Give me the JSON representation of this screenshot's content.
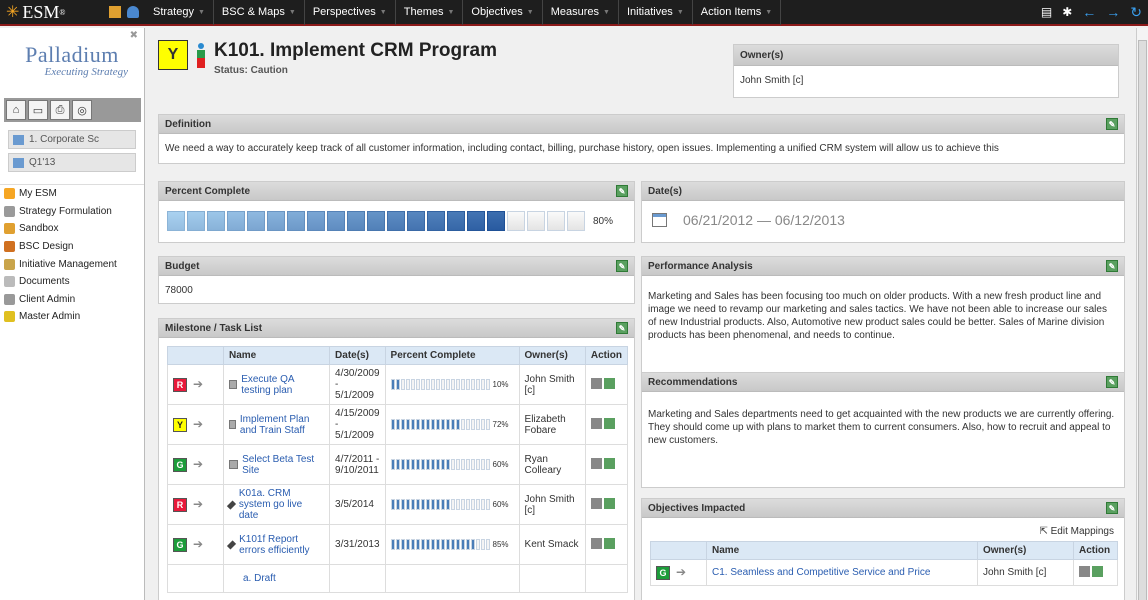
{
  "app": {
    "logo": "ESM",
    "logo_mark": "®"
  },
  "nav": [
    {
      "label": "Strategy"
    },
    {
      "label": "BSC & Maps"
    },
    {
      "label": "Perspectives"
    },
    {
      "label": "Themes"
    },
    {
      "label": "Objectives"
    },
    {
      "label": "Measures"
    },
    {
      "label": "Initiatives"
    },
    {
      "label": "Action Items"
    }
  ],
  "sidebar": {
    "brand_name": "Palladium",
    "brand_tagline": "Executing Strategy",
    "scorecard": "1. Corporate Sc",
    "period": "Q1'13",
    "menu": [
      {
        "label": "My ESM",
        "color": "#f6a623"
      },
      {
        "label": "Strategy Formulation",
        "color": "#9a9a9a"
      },
      {
        "label": "Sandbox",
        "color": "#e0a030"
      },
      {
        "label": "BSC Design",
        "color": "#d07020"
      },
      {
        "label": "Initiative Management",
        "color": "#c9a44a"
      },
      {
        "label": "Documents",
        "color": "#bbbbbb"
      },
      {
        "label": "Client Admin",
        "color": "#999999"
      },
      {
        "label": "Master Admin",
        "color": "#e0c020"
      }
    ]
  },
  "header": {
    "status_letter": "Y",
    "title": "K101. Implement CRM Program",
    "status": "Status: Caution"
  },
  "owner": {
    "title": "Owner(s)",
    "name": "John Smith [c]"
  },
  "definition": {
    "title": "Definition",
    "text": "We need a way to accurately keep track of all customer information, including contact, billing, purchase history, open issues. Implementing a unified CRM system will allow us to achieve this"
  },
  "percent_complete": {
    "title": "Percent Complete",
    "value": 80,
    "label": "80%"
  },
  "dates": {
    "title": "Date(s)",
    "range": "06/21/2012 — 06/12/2013"
  },
  "budget": {
    "title": "Budget",
    "value": "78000"
  },
  "performance": {
    "title": "Performance Analysis",
    "text": "Marketing and Sales has been focusing too much on older products.  With a new fresh product line and image we need to revamp our marketing and sales tactics.  We have not been able to increase our sales of new Industrial products.  Also, Automotive new product sales could be better.  Sales of Marine division products has been phenomenal, and needs to continue."
  },
  "recommendations": {
    "title": "Recommendations",
    "text": "Marketing and Sales departments need to get acquainted with the new products we are currently offering.  They should come up with plans to market them to current consumers. Also, how to recruit and appeal to new customers."
  },
  "milestones": {
    "title": "Milestone / Task List",
    "columns": [
      "Name",
      "Date(s)",
      "Percent Complete",
      "Owner(s)",
      "Action"
    ],
    "rows": [
      {
        "status": "R",
        "type": "task",
        "name": "Execute QA testing plan",
        "dates": "4/30/2009 - 5/1/2009",
        "pct": 10,
        "pct_label": "10%",
        "owner": "John Smith [c]"
      },
      {
        "status": "Y",
        "type": "task",
        "name": "Implement Plan and Train Staff",
        "dates": "4/15/2009 - 5/1/2009",
        "pct": 72,
        "pct_label": "72%",
        "owner": "Elizabeth Fobare"
      },
      {
        "status": "G",
        "type": "task",
        "name": "Select Beta Test Site",
        "dates": "4/7/2011 - 9/10/2011",
        "pct": 60,
        "pct_label": "60%",
        "owner": "Ryan Colleary"
      },
      {
        "status": "R",
        "type": "milestone",
        "name": "K01a. CRM system go live date",
        "dates": "3/5/2014",
        "pct": 60,
        "pct_label": "60%",
        "owner": "John Smith [c]"
      },
      {
        "status": "G",
        "type": "milestone",
        "name": "K101f Report errors efficiently",
        "dates": "3/31/2013",
        "pct": 85,
        "pct_label": "85%",
        "owner": "Kent Smack"
      },
      {
        "status": "",
        "type": "none",
        "name": "a. Draft",
        "dates": "",
        "pct": null,
        "pct_label": "",
        "owner": ""
      }
    ]
  },
  "objectives": {
    "title": "Objectives Impacted",
    "edit_label": "Edit Mappings",
    "columns": [
      "Name",
      "Owner(s)",
      "Action"
    ],
    "rows": [
      {
        "status": "G",
        "name": "C1. Seamless and Competitive Service and Price",
        "owner": "John Smith [c]"
      }
    ]
  }
}
